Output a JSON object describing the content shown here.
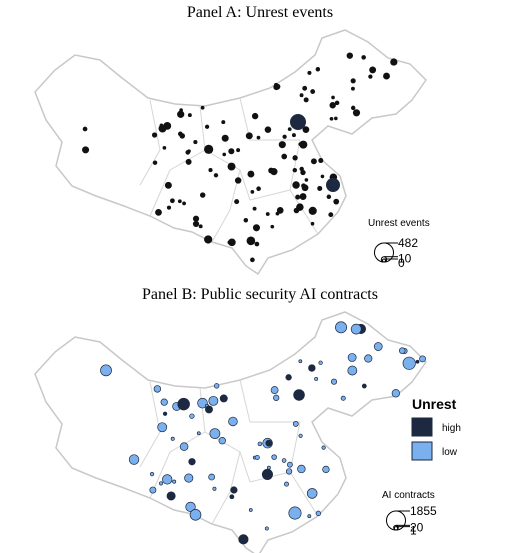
{
  "panels": [
    {
      "title": "Panel A: Unrest events",
      "size_legend": {
        "title": "Unrest events",
        "values": [
          482,
          10,
          0
        ]
      }
    },
    {
      "title": "Panel B: Public security AI contracts",
      "color_legend": {
        "title": "Unrest",
        "items": [
          {
            "label": "high",
            "color": "#1c2940"
          },
          {
            "label": "low",
            "color": "#7ab0ee"
          }
        ]
      },
      "size_legend": {
        "title": "AI contracts",
        "values": [
          1855,
          20,
          1
        ]
      }
    }
  ]
}
